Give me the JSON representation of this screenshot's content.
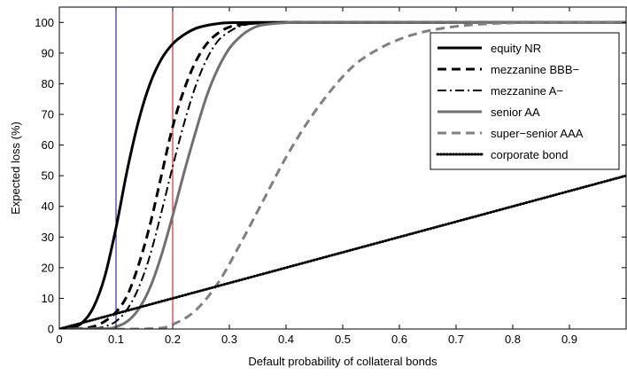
{
  "chart_data": {
    "type": "line",
    "title": "",
    "xlabel": "Default probability of collateral bonds",
    "ylabel": "Expected loss (%)",
    "xlim": [
      0,
      1.0
    ],
    "ylim": [
      0,
      105
    ],
    "x_ticks": [
      0,
      0.1,
      0.2,
      0.3,
      0.4,
      0.5,
      0.6,
      0.7,
      0.8,
      0.9
    ],
    "x_tick_labels": [
      "0",
      "0.1",
      "0.2",
      "0.3",
      "0.4",
      "0.5",
      "0.6",
      "0.7",
      "0.8",
      "0.9"
    ],
    "y_ticks": [
      0,
      10,
      20,
      30,
      40,
      50,
      60,
      70,
      80,
      90,
      100
    ],
    "y_tick_labels": [
      "0",
      "10",
      "20",
      "30",
      "40",
      "50",
      "60",
      "70",
      "80",
      "90",
      "100"
    ],
    "grid": false,
    "legend_position": "top-right",
    "reference_lines": [
      {
        "x": 0.1,
        "color": "#0000aa"
      },
      {
        "x": 0.2,
        "color": "#dd0000"
      }
    ],
    "series": [
      {
        "name": "equity NR",
        "color": "#000000",
        "dash": "solid",
        "x": [
          0,
          0.02,
          0.04,
          0.06,
          0.08,
          0.1,
          0.12,
          0.14,
          0.16,
          0.18,
          0.2,
          0.22,
          0.24,
          0.26,
          0.28,
          0.3,
          0.35,
          0.4,
          0.5,
          0.7,
          1.0
        ],
        "values": [
          0,
          0.3,
          2,
          7,
          17,
          33,
          52,
          68,
          80,
          88,
          93,
          96,
          98,
          99,
          99.6,
          99.9,
          100,
          100,
          100,
          100,
          100
        ]
      },
      {
        "name": "mezzanine BBB−",
        "color": "#000000",
        "dash": "dashed",
        "x": [
          0,
          0.04,
          0.06,
          0.08,
          0.1,
          0.12,
          0.14,
          0.16,
          0.18,
          0.2,
          0.22,
          0.24,
          0.26,
          0.28,
          0.3,
          0.32,
          0.35,
          0.4,
          0.5,
          0.7,
          1.0
        ],
        "values": [
          0,
          0.2,
          0.8,
          2.5,
          5.5,
          11,
          21,
          34,
          50,
          66,
          78,
          87,
          93,
          96.5,
          98.5,
          99.3,
          99.8,
          100,
          100,
          100,
          100
        ]
      },
      {
        "name": "mezzanine A−",
        "color": "#000000",
        "dash": "dashdot",
        "x": [
          0,
          0.06,
          0.08,
          0.1,
          0.12,
          0.14,
          0.16,
          0.18,
          0.2,
          0.22,
          0.24,
          0.26,
          0.28,
          0.3,
          0.32,
          0.35,
          0.4,
          0.5,
          0.7,
          1.0
        ],
        "values": [
          0,
          0.2,
          0.8,
          2.5,
          6.5,
          13.5,
          24,
          38,
          53,
          67,
          79,
          88,
          94,
          97,
          98.8,
          99.8,
          100,
          100,
          100,
          100
        ]
      },
      {
        "name": "senior AA",
        "color": "#707070",
        "dash": "solid",
        "x": [
          0,
          0.08,
          0.1,
          0.12,
          0.14,
          0.16,
          0.18,
          0.2,
          0.22,
          0.24,
          0.26,
          0.28,
          0.3,
          0.32,
          0.34,
          0.36,
          0.4,
          0.45,
          0.5,
          0.7,
          1.0
        ],
        "values": [
          0,
          0.1,
          0.7,
          2.5,
          6.5,
          13.5,
          24,
          37,
          51,
          64,
          76,
          85,
          91.5,
          95.5,
          98,
          99.2,
          99.9,
          100,
          100,
          100,
          100
        ]
      },
      {
        "name": "super−senior AAA",
        "color": "#808080",
        "dash": "dashed",
        "x": [
          0,
          0.16,
          0.2,
          0.24,
          0.28,
          0.32,
          0.36,
          0.4,
          0.44,
          0.48,
          0.52,
          0.56,
          0.6,
          0.64,
          0.68,
          0.72,
          0.76,
          0.8,
          0.85,
          0.9,
          1.0
        ],
        "values": [
          0,
          0.1,
          1.5,
          6,
          15,
          28,
          42,
          56,
          68,
          78,
          86,
          91,
          94.5,
          96.8,
          98.2,
          99.1,
          99.6,
          99.85,
          99.95,
          100,
          100
        ]
      },
      {
        "name": "corporate bond",
        "color": "#000000",
        "dash": "dotted",
        "x": [
          0,
          1.0
        ],
        "values": [
          0,
          50
        ]
      }
    ]
  }
}
